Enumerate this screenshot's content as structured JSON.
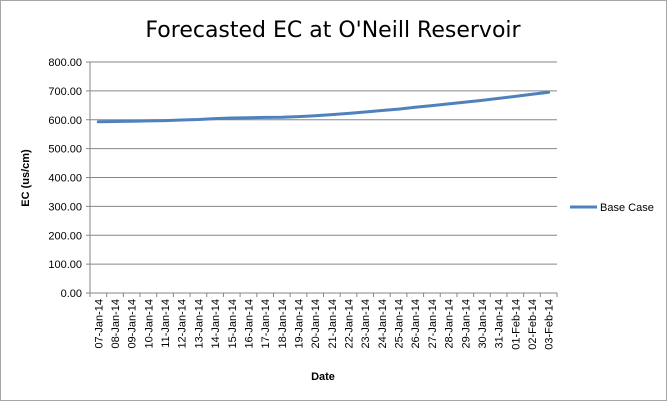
{
  "chart_data": {
    "type": "line",
    "title": "Forecasted EC at O'Neill Reservoir",
    "xlabel": "Date",
    "ylabel": "EC (us/cm)",
    "ylim": [
      0,
      800
    ],
    "yticks": [
      "0.00",
      "100.00",
      "200.00",
      "300.00",
      "400.00",
      "500.00",
      "600.00",
      "700.00",
      "800.00"
    ],
    "grid": true,
    "legend_position": "right",
    "categories": [
      "07-Jan-14",
      "08-Jan-14",
      "09-Jan-14",
      "10-Jan-14",
      "11-Jan-14",
      "12-Jan-14",
      "13-Jan-14",
      "14-Jan-14",
      "15-Jan-14",
      "16-Jan-14",
      "17-Jan-14",
      "18-Jan-14",
      "19-Jan-14",
      "20-Jan-14",
      "21-Jan-14",
      "22-Jan-14",
      "23-Jan-14",
      "24-Jan-14",
      "25-Jan-14",
      "26-Jan-14",
      "27-Jan-14",
      "28-Jan-14",
      "29-Jan-14",
      "30-Jan-14",
      "31-Jan-14",
      "01-Feb-14",
      "02-Feb-14",
      "03-Feb-14"
    ],
    "series": [
      {
        "name": "Base Case",
        "color": "#4f81bd",
        "values": [
          593,
          594,
          595,
          596,
          597,
          599,
          601,
          604,
          606,
          607,
          608,
          609,
          611,
          614,
          618,
          622,
          627,
          632,
          637,
          643,
          649,
          655,
          661,
          667,
          674,
          681,
          688,
          695
        ]
      }
    ]
  }
}
